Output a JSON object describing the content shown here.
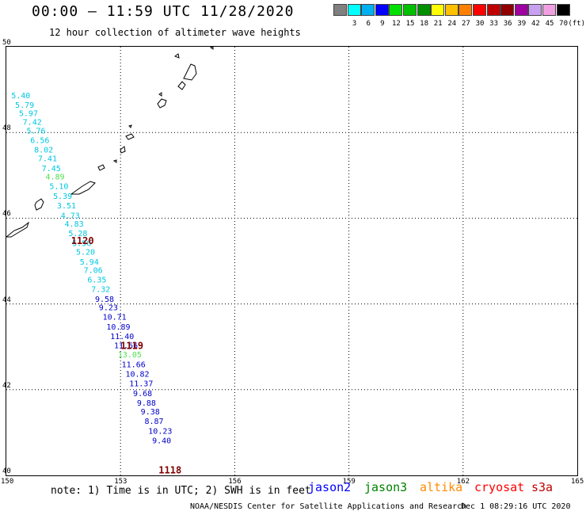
{
  "header": {
    "title": "00:00 – 11:59 UTC 11/28/2020",
    "subtitle": "12 hour collection of altimeter wave heights"
  },
  "legend": {
    "unit": "(ft)",
    "bins": [
      {
        "label": "",
        "color": "#808080"
      },
      {
        "label": "3",
        "color": "#00ffff"
      },
      {
        "label": "6",
        "color": "#00b0f0"
      },
      {
        "label": "9",
        "color": "#0000ff"
      },
      {
        "label": "12",
        "color": "#00e000"
      },
      {
        "label": "15",
        "color": "#00c000"
      },
      {
        "label": "18",
        "color": "#009000"
      },
      {
        "label": "21",
        "color": "#ffff00"
      },
      {
        "label": "24",
        "color": "#ffc000"
      },
      {
        "label": "27",
        "color": "#ff8000"
      },
      {
        "label": "30",
        "color": "#ff0000"
      },
      {
        "label": "33",
        "color": "#c00000"
      },
      {
        "label": "36",
        "color": "#900000"
      },
      {
        "label": "39",
        "color": "#a000a0"
      },
      {
        "label": "42",
        "color": "#c8a0f0"
      },
      {
        "label": "45",
        "color": "#f0a0e0"
      },
      {
        "label": "70",
        "color": "#000000"
      }
    ]
  },
  "map": {
    "lon_range": [
      150,
      165
    ],
    "lat_range": [
      40,
      50
    ],
    "lon_ticks": [
      "150",
      "153",
      "156",
      "159",
      "162",
      "165"
    ],
    "lat_ticks": [
      "40",
      "42",
      "44",
      "46",
      "48",
      "50"
    ],
    "grid": "dotted",
    "track_times": [
      {
        "label": "1120",
        "lon": 151.7,
        "lat": 45.4,
        "color": "#800000"
      },
      {
        "label": "1119",
        "lon": 153.0,
        "lat": 42.95,
        "color": "#800000"
      },
      {
        "label": "1118",
        "lon": 154.0,
        "lat": 40.05,
        "color": "#800000"
      }
    ],
    "observations": [
      {
        "value": "5.40",
        "lon": 150.13,
        "lat": 48.8,
        "color": "#00c8e0"
      },
      {
        "value": "5.79",
        "lon": 150.23,
        "lat": 48.58,
        "color": "#00c8e0"
      },
      {
        "value": "5.97",
        "lon": 150.33,
        "lat": 48.38,
        "color": "#00c8e0"
      },
      {
        "value": "7.42",
        "lon": 150.43,
        "lat": 48.18,
        "color": "#00c8e0"
      },
      {
        "value": "5.76",
        "lon": 150.53,
        "lat": 47.98,
        "color": "#00c8e0"
      },
      {
        "value": "6.56",
        "lon": 150.63,
        "lat": 47.75,
        "color": "#00c8e0"
      },
      {
        "value": "8.02",
        "lon": 150.73,
        "lat": 47.53,
        "color": "#00c8e0"
      },
      {
        "value": "7.41",
        "lon": 150.83,
        "lat": 47.33,
        "color": "#00c8e0"
      },
      {
        "value": "7.45",
        "lon": 150.93,
        "lat": 47.1,
        "color": "#00c8e0"
      },
      {
        "value": "4.89",
        "lon": 151.03,
        "lat": 46.9,
        "color": "#50e050"
      },
      {
        "value": "5.10",
        "lon": 151.13,
        "lat": 46.68,
        "color": "#00c8e0"
      },
      {
        "value": "5.39",
        "lon": 151.23,
        "lat": 46.45,
        "color": "#00c8e0"
      },
      {
        "value": "3.51",
        "lon": 151.33,
        "lat": 46.23,
        "color": "#00c8e0"
      },
      {
        "value": "4.73",
        "lon": 151.43,
        "lat": 46.0,
        "color": "#00c8e0"
      },
      {
        "value": "4.83",
        "lon": 151.53,
        "lat": 45.8,
        "color": "#00c8e0"
      },
      {
        "value": "5.28",
        "lon": 151.63,
        "lat": 45.58,
        "color": "#00c8e0"
      },
      {
        "value": "5.56",
        "lon": 151.73,
        "lat": 45.35,
        "color": "#00c8e0"
      },
      {
        "value": "5.20",
        "lon": 151.83,
        "lat": 45.15,
        "color": "#00c8e0"
      },
      {
        "value": "5.94",
        "lon": 151.93,
        "lat": 44.92,
        "color": "#00c8e0"
      },
      {
        "value": "7.06",
        "lon": 152.03,
        "lat": 44.72,
        "color": "#00c8e0"
      },
      {
        "value": "6.35",
        "lon": 152.13,
        "lat": 44.5,
        "color": "#00c8e0"
      },
      {
        "value": "7.32",
        "lon": 152.23,
        "lat": 44.28,
        "color": "#00c8e0"
      },
      {
        "value": "9.58",
        "lon": 152.33,
        "lat": 44.05,
        "color": "#0000cc"
      },
      {
        "value": "9.23",
        "lon": 152.43,
        "lat": 43.85,
        "color": "#0000cc"
      },
      {
        "value": "10.71",
        "lon": 152.53,
        "lat": 43.63,
        "color": "#0000cc"
      },
      {
        "value": "10.89",
        "lon": 152.63,
        "lat": 43.4,
        "color": "#0000cc"
      },
      {
        "value": "11.40",
        "lon": 152.73,
        "lat": 43.18,
        "color": "#0000cc"
      },
      {
        "value": "11.56",
        "lon": 152.83,
        "lat": 42.97,
        "color": "#0000cc"
      },
      {
        "value": "13.05",
        "lon": 152.93,
        "lat": 42.75,
        "color": "#50e050"
      },
      {
        "value": "11.66",
        "lon": 153.03,
        "lat": 42.52,
        "color": "#0000cc"
      },
      {
        "value": "10.82",
        "lon": 153.13,
        "lat": 42.3,
        "color": "#0000cc"
      },
      {
        "value": "11.37",
        "lon": 153.23,
        "lat": 42.08,
        "color": "#0000cc"
      },
      {
        "value": "9.68",
        "lon": 153.33,
        "lat": 41.85,
        "color": "#0000cc"
      },
      {
        "value": "9.88",
        "lon": 153.43,
        "lat": 41.63,
        "color": "#0000cc"
      },
      {
        "value": "9.38",
        "lon": 153.53,
        "lat": 41.42,
        "color": "#0000cc"
      },
      {
        "value": "8.87",
        "lon": 153.63,
        "lat": 41.2,
        "color": "#0000cc"
      },
      {
        "value": "10.23",
        "lon": 153.73,
        "lat": 40.97,
        "color": "#0000cc"
      },
      {
        "value": "9.40",
        "lon": 153.83,
        "lat": 40.75,
        "color": "#0000cc"
      }
    ]
  },
  "footer": {
    "note": "note: 1) Time is in UTC; 2) SWH is in feet",
    "satellites": [
      {
        "name": "jason2",
        "color": "#0000ff"
      },
      {
        "name": "jason3",
        "color": "#008000"
      },
      {
        "name": "altika",
        "color": "#ff8c00"
      },
      {
        "name": "cryosat",
        "color": "#ff0000"
      },
      {
        "name": "s3a",
        "color": "#c00000"
      }
    ],
    "credit": "NOAA/NESDIS Center for Satellite Applications and Research",
    "timestamp": "Dec  1 08:29:16 UTC 2020"
  }
}
